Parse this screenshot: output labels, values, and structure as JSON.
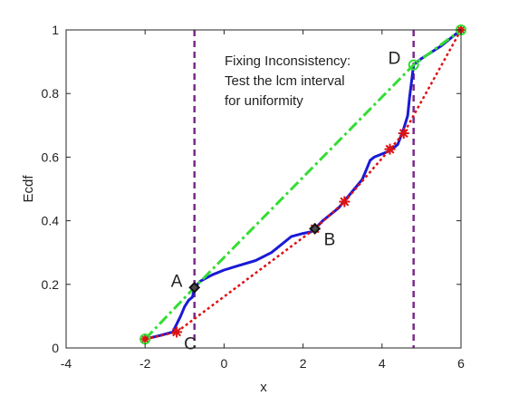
{
  "chart_data": {
    "type": "line",
    "title": "",
    "xlabel": "x",
    "ylabel": "Ecdf",
    "xlim": [
      -4,
      6
    ],
    "ylim": [
      0,
      1
    ],
    "xticks": [
      "-4",
      "-2",
      "0",
      "2",
      "4",
      "6"
    ],
    "yticks": [
      "0",
      "0.2",
      "0.4",
      "0.6",
      "0.8",
      "1"
    ],
    "grid": false,
    "annotation": [
      "Fixing Inconsistency:",
      "Test the lcm interval",
      "for uniformity"
    ],
    "vlines": [
      -0.75,
      4.8
    ],
    "colors": {
      "ecdf": "#1a1ad6",
      "lcm": "#33dd33",
      "gcm": "#dd1111",
      "vline": "#7a2a8a",
      "marker_fill": "#4a4a4a",
      "marker_edge": "#111111",
      "axes": "#262626"
    },
    "series": [
      {
        "values": [
          [
            -2,
            0.028
          ],
          [
            -1.6,
            0.04
          ],
          [
            -1.3,
            0.05
          ],
          [
            -1.1,
            0.1
          ],
          [
            -1.0,
            0.13
          ],
          [
            -0.9,
            0.15
          ],
          [
            -0.8,
            0.16
          ],
          [
            -0.75,
            0.19
          ],
          [
            -0.6,
            0.21
          ],
          [
            -0.3,
            0.23
          ],
          [
            0.0,
            0.245
          ],
          [
            0.4,
            0.26
          ],
          [
            0.8,
            0.275
          ],
          [
            1.2,
            0.3
          ],
          [
            1.5,
            0.33
          ],
          [
            1.7,
            0.35
          ],
          [
            2.0,
            0.36
          ],
          [
            2.2,
            0.365
          ],
          [
            2.3,
            0.375
          ],
          [
            2.5,
            0.4
          ],
          [
            2.7,
            0.42
          ],
          [
            2.9,
            0.44
          ],
          [
            3.1,
            0.47
          ],
          [
            3.3,
            0.5
          ],
          [
            3.5,
            0.53
          ],
          [
            3.6,
            0.56
          ],
          [
            3.7,
            0.59
          ],
          [
            3.8,
            0.6
          ],
          [
            4.0,
            0.61
          ],
          [
            4.2,
            0.62
          ],
          [
            4.4,
            0.64
          ],
          [
            4.55,
            0.69
          ],
          [
            4.65,
            0.73
          ],
          [
            4.7,
            0.79
          ],
          [
            4.75,
            0.84
          ],
          [
            4.8,
            0.89
          ],
          [
            5.0,
            0.91
          ],
          [
            5.5,
            0.95
          ],
          [
            6.0,
            1.0
          ]
        ]
      },
      {
        "values": [
          [
            -2,
            0.028
          ],
          [
            -0.75,
            0.19
          ],
          [
            4.8,
            0.89
          ],
          [
            6.0,
            1.0
          ]
        ]
      },
      {
        "values": [
          [
            -2,
            0.028
          ],
          [
            -1.2,
            0.05
          ],
          [
            2.3,
            0.375
          ],
          [
            3.05,
            0.46
          ],
          [
            4.2,
            0.625
          ],
          [
            4.55,
            0.675
          ],
          [
            6.0,
            1.0
          ]
        ]
      }
    ],
    "points": [
      {
        "label": "A",
        "x": -0.75,
        "y": 0.19
      },
      {
        "label": "B",
        "x": 2.3,
        "y": 0.375
      },
      {
        "label": "C",
        "x": -1.2,
        "y": 0.05
      },
      {
        "label": "D",
        "x": 4.8,
        "y": 0.89
      }
    ]
  }
}
